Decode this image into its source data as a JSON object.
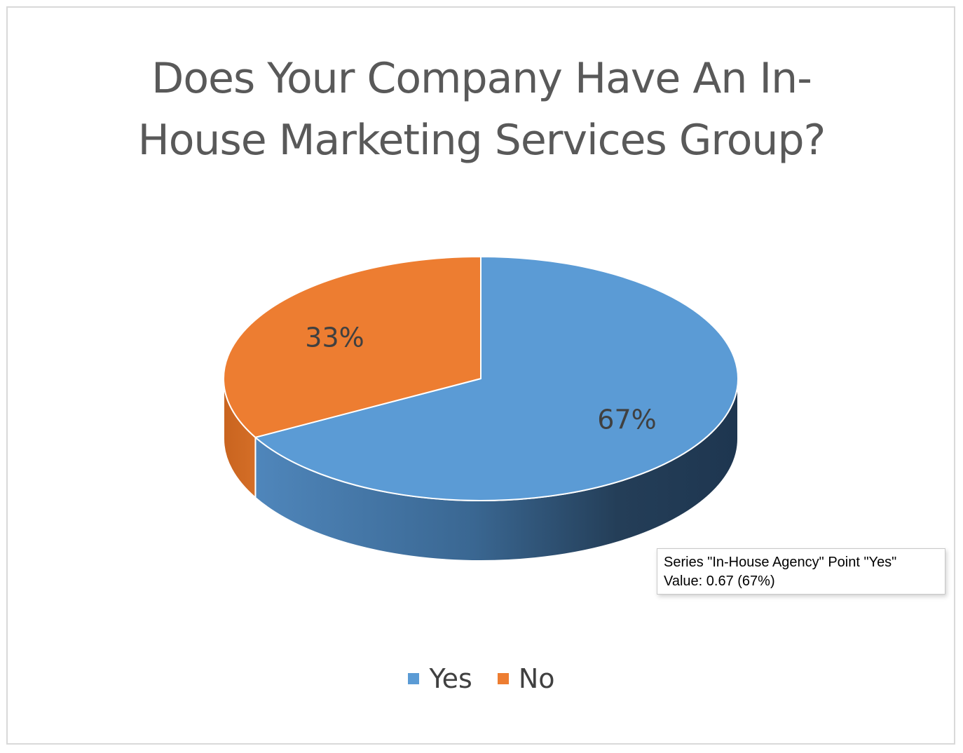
{
  "chart_data": {
    "type": "pie",
    "title": "Does Your Company Have An In-House Marketing Services Group?",
    "title_lines": [
      "Does Your Company Have An In-",
      "House Marketing Services Group?"
    ],
    "categories": [
      "Yes",
      "No"
    ],
    "values": [
      0.67,
      0.33
    ],
    "labels": [
      "67%",
      "33%"
    ],
    "colors": [
      "#5b9bd5",
      "#ed7d31"
    ],
    "legend_position": "bottom",
    "style": "3d"
  },
  "tooltip": {
    "line1": "Series \"In-House Agency\" Point \"Yes\"",
    "line2": "Value: 0.67 (67%)"
  }
}
